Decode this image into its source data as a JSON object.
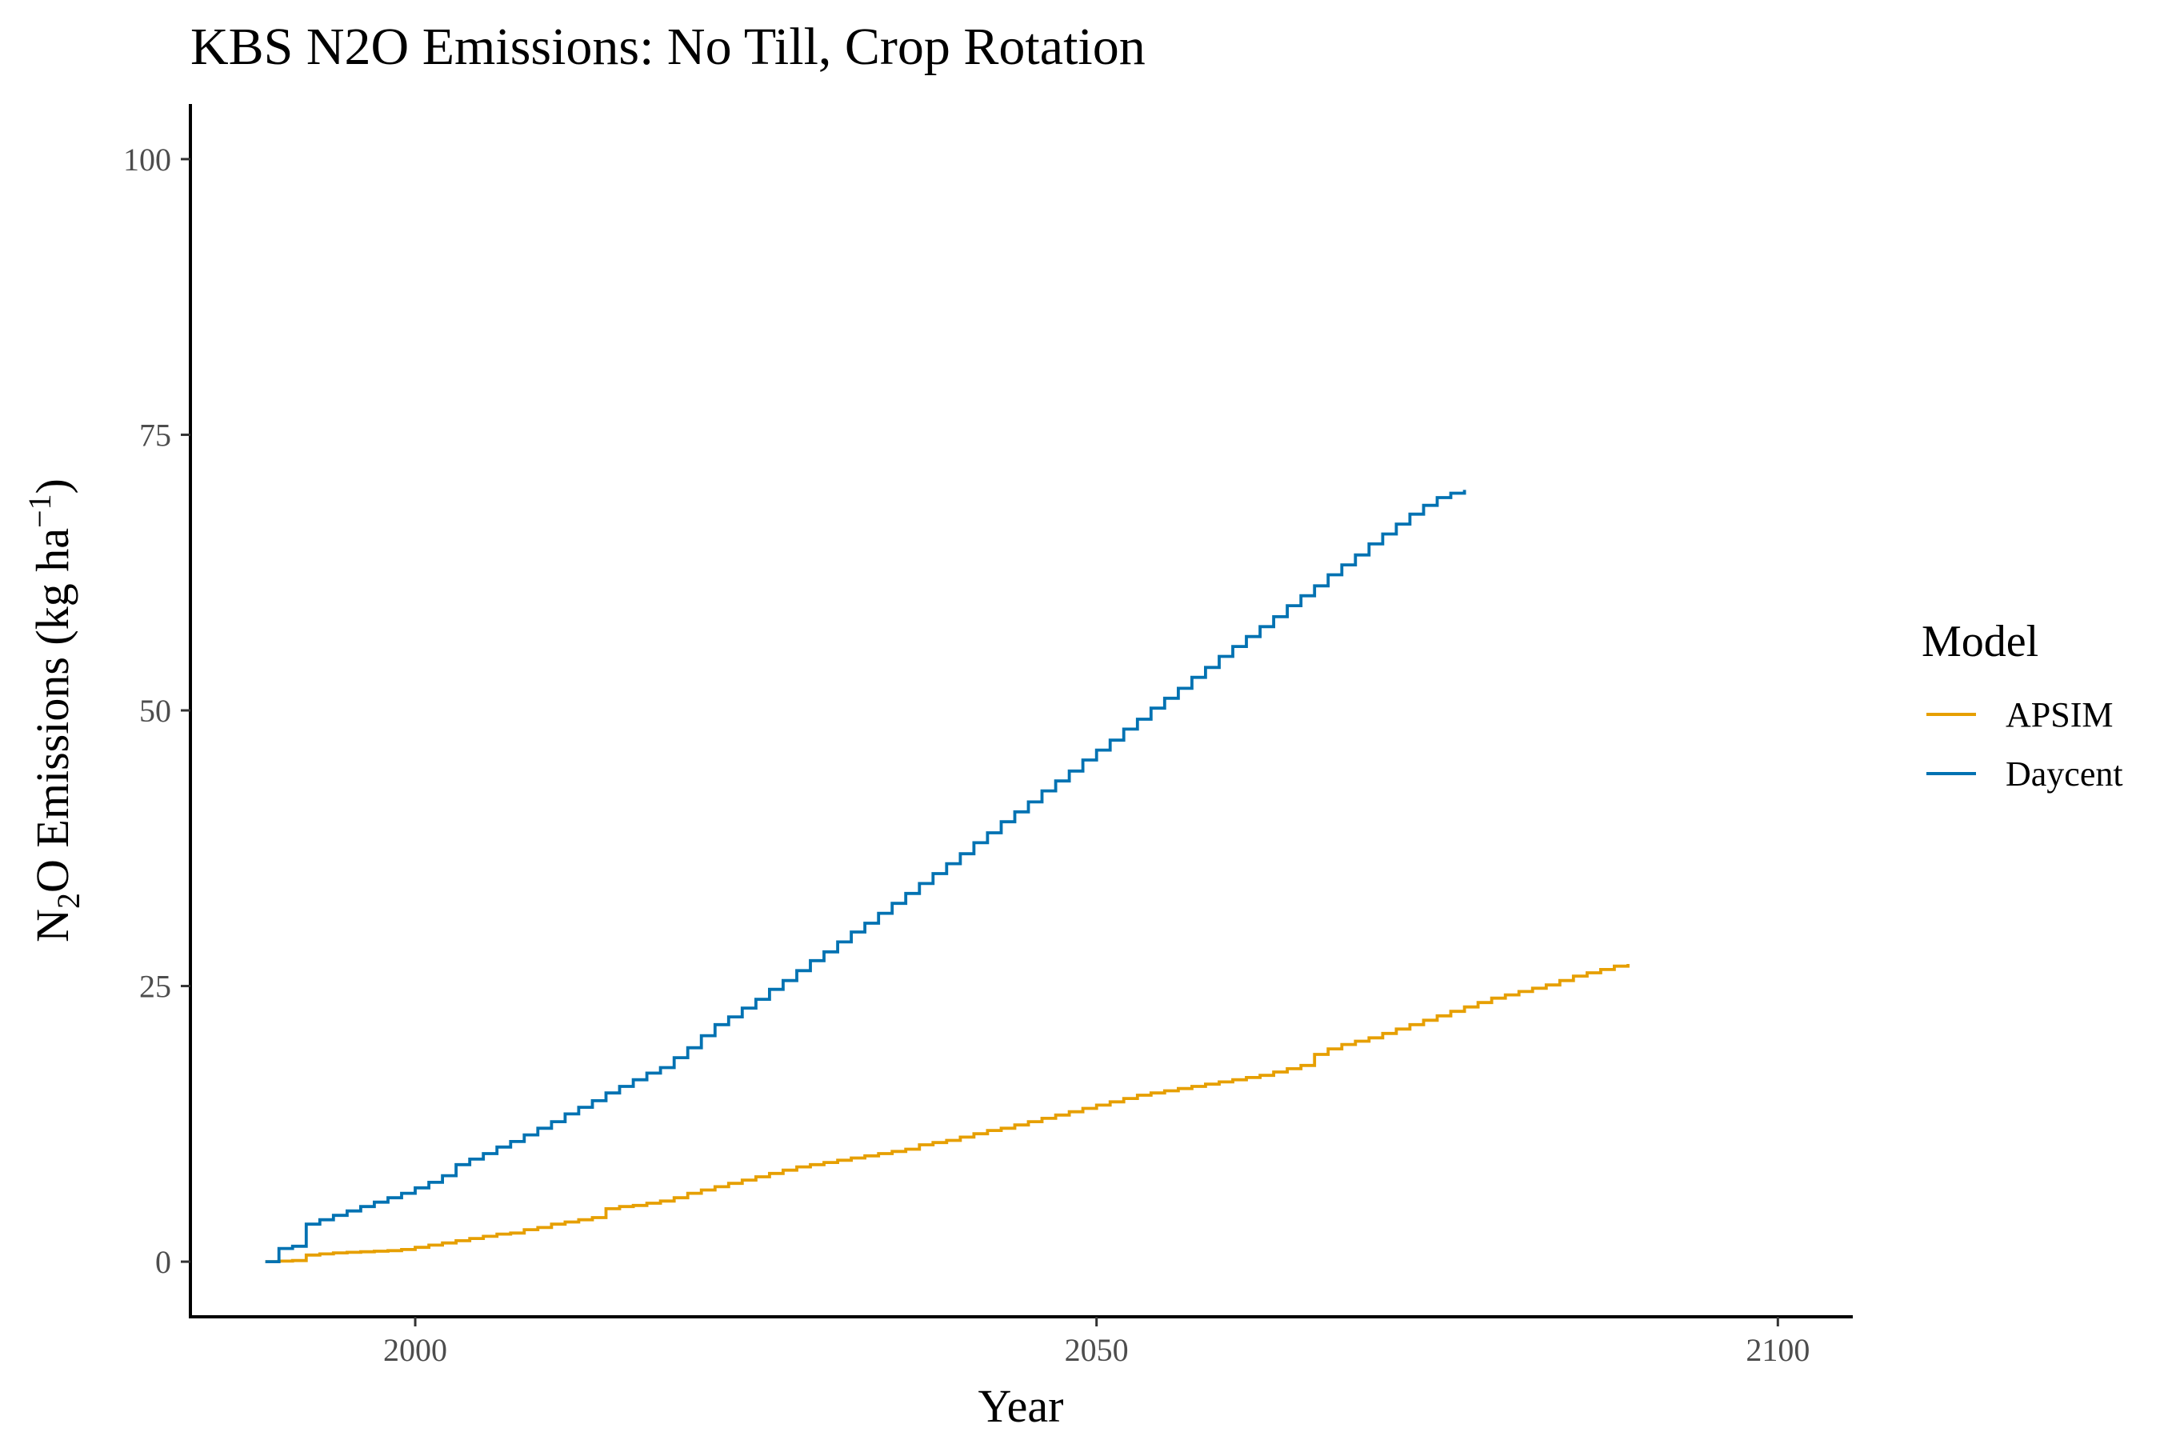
{
  "chart_data": {
    "type": "line",
    "title": "KBS N2O Emissions:  No Till, Crop Rotation",
    "xlabel": "Year",
    "ylabel": {
      "prefix": "N",
      "prefix_sub": "2",
      "main": "O Emissions (kg ha",
      "sup": "−1",
      "suffix": ")"
    },
    "xlim": [
      1983.5,
      2105.5
    ],
    "ylim": [
      -5,
      105
    ],
    "x_ticks": [
      2000,
      2050,
      2100
    ],
    "x_tick_labels": [
      "2000",
      "2050",
      "2100"
    ],
    "y_ticks": [
      0,
      25,
      50,
      75,
      100
    ],
    "y_tick_labels": [
      "0",
      "25",
      "50",
      "75",
      "100"
    ],
    "grid": false,
    "legend": {
      "title": "Model",
      "position": "right"
    },
    "series": [
      {
        "name": "APSIM",
        "color": "#E69F00",
        "points": [
          [
            1989,
            0.0
          ],
          [
            1990,
            0.05
          ],
          [
            1991,
            0.1
          ],
          [
            1992,
            0.6
          ],
          [
            1993,
            0.7
          ],
          [
            1994,
            0.8
          ],
          [
            1995,
            0.85
          ],
          [
            1996,
            0.9
          ],
          [
            1997,
            0.95
          ],
          [
            1998,
            1.0
          ],
          [
            1999,
            1.1
          ],
          [
            2000,
            1.3
          ],
          [
            2001,
            1.5
          ],
          [
            2002,
            1.7
          ],
          [
            2003,
            1.9
          ],
          [
            2004,
            2.1
          ],
          [
            2005,
            2.3
          ],
          [
            2006,
            2.5
          ],
          [
            2007,
            2.6
          ],
          [
            2008,
            2.9
          ],
          [
            2009,
            3.1
          ],
          [
            2010,
            3.4
          ],
          [
            2011,
            3.6
          ],
          [
            2012,
            3.8
          ],
          [
            2013,
            4.0
          ],
          [
            2014,
            4.8
          ],
          [
            2015,
            5.0
          ],
          [
            2016,
            5.1
          ],
          [
            2017,
            5.3
          ],
          [
            2018,
            5.5
          ],
          [
            2019,
            5.8
          ],
          [
            2020,
            6.2
          ],
          [
            2021,
            6.5
          ],
          [
            2022,
            6.8
          ],
          [
            2023,
            7.1
          ],
          [
            2024,
            7.4
          ],
          [
            2025,
            7.7
          ],
          [
            2026,
            8.0
          ],
          [
            2027,
            8.3
          ],
          [
            2028,
            8.6
          ],
          [
            2029,
            8.8
          ],
          [
            2030,
            9.0
          ],
          [
            2031,
            9.2
          ],
          [
            2032,
            9.4
          ],
          [
            2033,
            9.6
          ],
          [
            2034,
            9.8
          ],
          [
            2035,
            10.0
          ],
          [
            2036,
            10.2
          ],
          [
            2037,
            10.6
          ],
          [
            2038,
            10.8
          ],
          [
            2039,
            11.0
          ],
          [
            2040,
            11.3
          ],
          [
            2041,
            11.6
          ],
          [
            2042,
            11.9
          ],
          [
            2043,
            12.1
          ],
          [
            2044,
            12.4
          ],
          [
            2045,
            12.7
          ],
          [
            2046,
            13.0
          ],
          [
            2047,
            13.3
          ],
          [
            2048,
            13.6
          ],
          [
            2049,
            13.9
          ],
          [
            2050,
            14.2
          ],
          [
            2051,
            14.5
          ],
          [
            2052,
            14.8
          ],
          [
            2053,
            15.1
          ],
          [
            2054,
            15.3
          ],
          [
            2055,
            15.5
          ],
          [
            2056,
            15.7
          ],
          [
            2057,
            15.9
          ],
          [
            2058,
            16.1
          ],
          [
            2059,
            16.3
          ],
          [
            2060,
            16.5
          ],
          [
            2061,
            16.7
          ],
          [
            2062,
            16.9
          ],
          [
            2063,
            17.2
          ],
          [
            2064,
            17.5
          ],
          [
            2065,
            17.8
          ],
          [
            2066,
            18.8
          ],
          [
            2067,
            19.3
          ],
          [
            2068,
            19.7
          ],
          [
            2069,
            20.0
          ],
          [
            2070,
            20.3
          ],
          [
            2071,
            20.7
          ],
          [
            2072,
            21.1
          ],
          [
            2073,
            21.5
          ],
          [
            2074,
            21.9
          ],
          [
            2075,
            22.3
          ],
          [
            2076,
            22.7
          ],
          [
            2077,
            23.1
          ],
          [
            2078,
            23.5
          ],
          [
            2079,
            23.9
          ],
          [
            2080,
            24.2
          ],
          [
            2081,
            24.5
          ],
          [
            2082,
            24.8
          ],
          [
            2083,
            25.1
          ],
          [
            2084,
            25.5
          ],
          [
            2085,
            25.9
          ],
          [
            2086,
            26.2
          ],
          [
            2087,
            26.5
          ],
          [
            2088,
            26.8
          ],
          [
            2089,
            27.0
          ]
        ]
      },
      {
        "name": "Daycent",
        "color": "#0072B2",
        "points": [
          [
            1989,
            0.0
          ],
          [
            1990,
            1.2
          ],
          [
            1991,
            1.4
          ],
          [
            1992,
            3.4
          ],
          [
            1993,
            3.8
          ],
          [
            1994,
            4.2
          ],
          [
            1995,
            4.6
          ],
          [
            1996,
            5.0
          ],
          [
            1997,
            5.4
          ],
          [
            1998,
            5.8
          ],
          [
            1999,
            6.2
          ],
          [
            2000,
            6.7
          ],
          [
            2001,
            7.2
          ],
          [
            2002,
            7.8
          ],
          [
            2003,
            8.8
          ],
          [
            2004,
            9.3
          ],
          [
            2005,
            9.8
          ],
          [
            2006,
            10.4
          ],
          [
            2007,
            10.9
          ],
          [
            2008,
            11.5
          ],
          [
            2009,
            12.1
          ],
          [
            2010,
            12.7
          ],
          [
            2011,
            13.4
          ],
          [
            2012,
            14.0
          ],
          [
            2013,
            14.6
          ],
          [
            2014,
            15.3
          ],
          [
            2015,
            15.9
          ],
          [
            2016,
            16.5
          ],
          [
            2017,
            17.1
          ],
          [
            2018,
            17.6
          ],
          [
            2019,
            18.5
          ],
          [
            2020,
            19.4
          ],
          [
            2021,
            20.5
          ],
          [
            2022,
            21.5
          ],
          [
            2023,
            22.2
          ],
          [
            2024,
            23.0
          ],
          [
            2025,
            23.8
          ],
          [
            2026,
            24.7
          ],
          [
            2027,
            25.5
          ],
          [
            2028,
            26.4
          ],
          [
            2029,
            27.3
          ],
          [
            2030,
            28.1
          ],
          [
            2031,
            29.0
          ],
          [
            2032,
            29.9
          ],
          [
            2033,
            30.7
          ],
          [
            2034,
            31.6
          ],
          [
            2035,
            32.5
          ],
          [
            2036,
            33.4
          ],
          [
            2037,
            34.3
          ],
          [
            2038,
            35.2
          ],
          [
            2039,
            36.1
          ],
          [
            2040,
            37.0
          ],
          [
            2041,
            38.0
          ],
          [
            2042,
            38.9
          ],
          [
            2043,
            39.9
          ],
          [
            2044,
            40.8
          ],
          [
            2045,
            41.7
          ],
          [
            2046,
            42.7
          ],
          [
            2047,
            43.6
          ],
          [
            2048,
            44.5
          ],
          [
            2049,
            45.5
          ],
          [
            2050,
            46.4
          ],
          [
            2051,
            47.3
          ],
          [
            2052,
            48.3
          ],
          [
            2053,
            49.2
          ],
          [
            2054,
            50.2
          ],
          [
            2055,
            51.1
          ],
          [
            2056,
            52.0
          ],
          [
            2057,
            53.0
          ],
          [
            2058,
            53.9
          ],
          [
            2059,
            54.9
          ],
          [
            2060,
            55.8
          ],
          [
            2061,
            56.7
          ],
          [
            2062,
            57.6
          ],
          [
            2063,
            58.5
          ],
          [
            2064,
            59.5
          ],
          [
            2065,
            60.4
          ],
          [
            2066,
            61.3
          ],
          [
            2067,
            62.3
          ],
          [
            2068,
            63.2
          ],
          [
            2069,
            64.1
          ],
          [
            2070,
            65.1
          ],
          [
            2071,
            66.0
          ],
          [
            2072,
            66.9
          ],
          [
            2073,
            67.8
          ],
          [
            2074,
            68.6
          ],
          [
            2075,
            69.3
          ],
          [
            2076,
            69.7
          ],
          [
            2077,
            70.0
          ]
        ]
      }
    ]
  }
}
